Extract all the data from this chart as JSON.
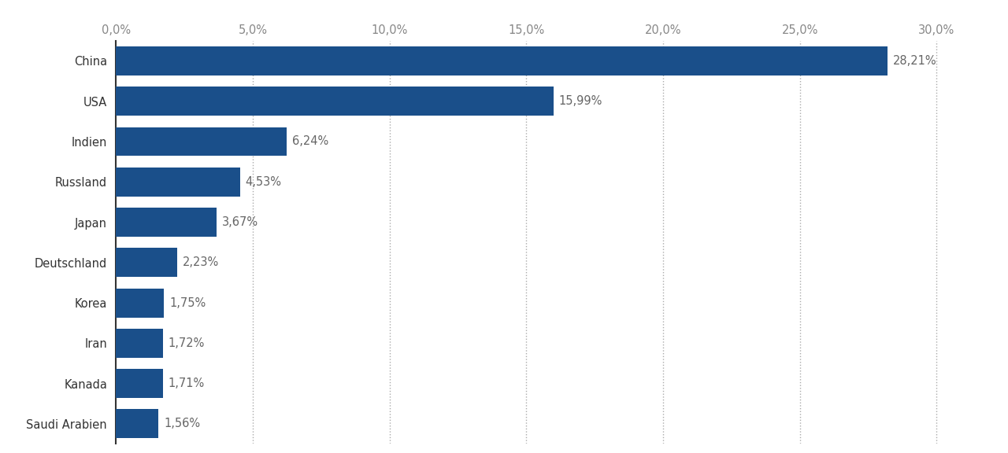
{
  "categories": [
    "China",
    "USA",
    "Indien",
    "Russland",
    "Japan",
    "Deutschland",
    "Korea",
    "Iran",
    "Kanada",
    "Saudi Arabien"
  ],
  "values": [
    28.21,
    15.99,
    6.24,
    4.53,
    3.67,
    2.23,
    1.75,
    1.72,
    1.71,
    1.56
  ],
  "labels": [
    "28,21%",
    "15,99%",
    "6,24%",
    "4,53%",
    "3,67%",
    "2,23%",
    "1,75%",
    "1,72%",
    "1,71%",
    "1,56%"
  ],
  "bar_color": "#1a4f8a",
  "background_color": "#ffffff",
  "xlim": [
    0,
    31.5
  ],
  "xticks": [
    0,
    5,
    10,
    15,
    20,
    25,
    30
  ],
  "xtick_labels": [
    "0,0%",
    "5,0%",
    "10,0%",
    "15,0%",
    "20,0%",
    "25,0%",
    "30,0%"
  ],
  "label_color": "#666666",
  "label_fontsize": 10.5,
  "tick_label_fontsize": 10.5,
  "bar_height": 0.72,
  "grid_color": "#aaaaaa",
  "spine_color": "#333333"
}
